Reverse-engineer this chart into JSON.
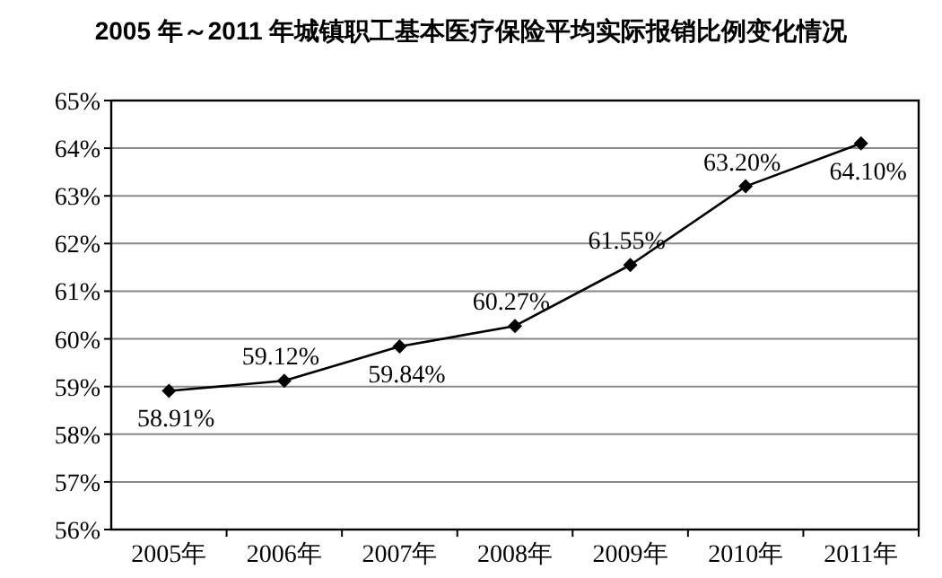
{
  "chart_data": {
    "type": "line",
    "title": "2005 年～2011 年城镇职工基本医疗保险平均实际报销比例变化情况",
    "categories": [
      "2005年",
      "2006年",
      "2007年",
      "2008年",
      "2009年",
      "2010年",
      "2011年"
    ],
    "values": [
      58.91,
      59.12,
      59.84,
      60.27,
      61.55,
      63.2,
      64.1
    ],
    "value_labels": [
      "58.91%",
      "59.12%",
      "59.84%",
      "60.27%",
      "61.55%",
      "63.20%",
      "64.10%"
    ],
    "color": "#000000",
    "marker": "diamond",
    "line_style": "solid",
    "grid": "y",
    "ylim": [
      56,
      65
    ],
    "yticks": [
      {
        "value": 56,
        "label": "56%"
      },
      {
        "value": 57,
        "label": "57%"
      },
      {
        "value": 58,
        "label": "58%"
      },
      {
        "value": 59,
        "label": "59%"
      },
      {
        "value": 60,
        "label": "60%"
      },
      {
        "value": 61,
        "label": "61%"
      },
      {
        "value": 62,
        "label": "62%"
      },
      {
        "value": 63,
        "label": "63%"
      },
      {
        "value": 64,
        "label": "64%"
      },
      {
        "value": 65,
        "label": "65%"
      }
    ]
  }
}
